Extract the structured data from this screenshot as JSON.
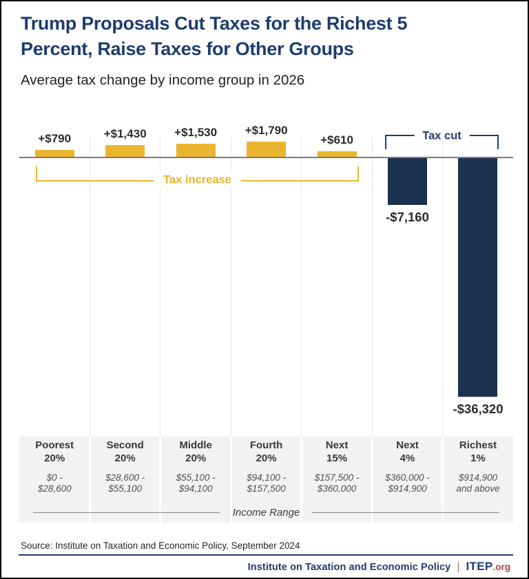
{
  "title": "Trump Proposals Cut Taxes for the Richest 5 Percent, Raise Taxes for Other Groups",
  "title_lines": [
    "Trump Proposals Cut Taxes for the Richest 5",
    "Percent, Raise Taxes for Other Groups"
  ],
  "subtitle": "Average tax change by income group in 2026",
  "chart_data": {
    "type": "bar",
    "title": "Trump Proposals Cut Taxes for the Richest 5 Percent, Raise Taxes for Other Groups",
    "subtitle": "Average tax change by income group in 2026",
    "categories": [
      "Poorest 20%",
      "Second 20%",
      "Middle 20%",
      "Fourth 20%",
      "Next 15%",
      "Next 4%",
      "Richest 1%"
    ],
    "values": [
      790,
      1430,
      1530,
      1790,
      610,
      -7160,
      -36320
    ],
    "value_labels": [
      "+$790",
      "+$1,430",
      "+$1,530",
      "+$1,790",
      "+$610",
      "-$7,160",
      "-$36,320"
    ],
    "income_ranges": [
      "$0 - $28,600",
      "$28,600 - $55,100",
      "$55,100 - $94,100",
      "$94,100 - $157,500",
      "$157,500 - $360,000",
      "$360,000 - $914,900",
      "$914,900 and above"
    ],
    "xlabel": "Income Range",
    "increase_annotation": "Tax increase",
    "cut_annotation": "Tax cut",
    "baseline": 0,
    "grid": true,
    "legend": "none",
    "colors": {
      "increase": "#e8b52d",
      "cut": "#1b3150"
    }
  },
  "source": "Source: Institute on Taxation and Economic Policy, September 2024",
  "footer": {
    "org_name": "Institute on Taxation and Economic Policy",
    "separator": "|",
    "logo_itep": "ITEP",
    "logo_org": ".org"
  }
}
